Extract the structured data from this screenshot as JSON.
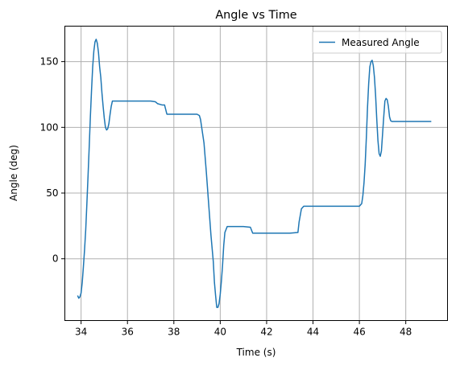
{
  "chart_data": {
    "type": "line",
    "title": "Angle vs Time",
    "xlabel": "Time (s)",
    "ylabel": "Angle (deg)",
    "xlim": [
      33.3,
      49.8
    ],
    "ylim": [
      -47,
      177
    ],
    "xticks": [
      34,
      36,
      38,
      40,
      42,
      44,
      46,
      48
    ],
    "yticks": [
      0,
      50,
      100,
      150
    ],
    "grid": true,
    "legend_position": "top-right",
    "series": [
      {
        "name": "Measured Angle",
        "color": "#1f77b4",
        "x": [
          33.85,
          33.9,
          33.95,
          34.0,
          34.05,
          34.1,
          34.15,
          34.2,
          34.25,
          34.3,
          34.35,
          34.4,
          34.45,
          34.5,
          34.55,
          34.6,
          34.65,
          34.7,
          34.75,
          34.8,
          34.85,
          34.9,
          34.95,
          35.0,
          35.05,
          35.1,
          35.15,
          35.2,
          35.25,
          35.3,
          35.35,
          35.4,
          35.45,
          35.5,
          35.6,
          36.0,
          36.5,
          37.0,
          37.2,
          37.3,
          37.5,
          37.6,
          37.7,
          38.0,
          38.5,
          39.0,
          39.1,
          39.15,
          39.2,
          39.3,
          39.4,
          39.5,
          39.6,
          39.7,
          39.75,
          39.8,
          39.85,
          39.9,
          39.95,
          40.0,
          40.05,
          40.1,
          40.15,
          40.2,
          40.3,
          40.4,
          40.5,
          40.7,
          41.0,
          41.3,
          41.4,
          41.5,
          41.7,
          42.0,
          42.5,
          43.0,
          43.35,
          43.4,
          43.5,
          43.6,
          44.0,
          44.5,
          45.0,
          45.5,
          46.0,
          46.1,
          46.15,
          46.2,
          46.25,
          46.3,
          46.35,
          46.4,
          46.45,
          46.5,
          46.55,
          46.6,
          46.65,
          46.7,
          46.75,
          46.8,
          46.85,
          46.9,
          46.95,
          47.0,
          47.05,
          47.1,
          47.15,
          47.2,
          47.25,
          47.3,
          47.35,
          47.4,
          47.45,
          47.5,
          47.6,
          47.8,
          48.0,
          48.5,
          49.0,
          49.1
        ],
        "y": [
          -28,
          -30,
          -29,
          -26,
          -18,
          -6,
          7,
          22,
          42,
          63,
          85,
          108,
          128,
          146,
          158,
          165,
          167,
          164,
          157,
          146,
          138,
          126,
          116,
          107,
          100,
          98,
          99,
          103,
          110,
          116,
          120,
          120,
          120,
          120,
          120,
          120,
          120,
          120,
          119.5,
          118,
          117,
          117,
          110,
          110,
          110,
          110,
          109,
          106,
          100,
          88,
          66,
          42,
          18,
          -2,
          -18,
          -28,
          -37,
          -37,
          -34,
          -27,
          -17,
          -5,
          10,
          20,
          24.5,
          24.5,
          24.5,
          24.5,
          24.5,
          24,
          19.5,
          19.5,
          19.5,
          19.5,
          19.5,
          19.5,
          20,
          28,
          38,
          40,
          40,
          40,
          40,
          40,
          40,
          42,
          48,
          58,
          72,
          92,
          115,
          133,
          146,
          150,
          151,
          147,
          138,
          124,
          106,
          90,
          80,
          78,
          82,
          95,
          108,
          120,
          122,
          121,
          116,
          108,
          105,
          104.5,
          104.5,
          104.5,
          104.5,
          104.5,
          104.5,
          104.5,
          104.5,
          104.5
        ]
      }
    ]
  }
}
